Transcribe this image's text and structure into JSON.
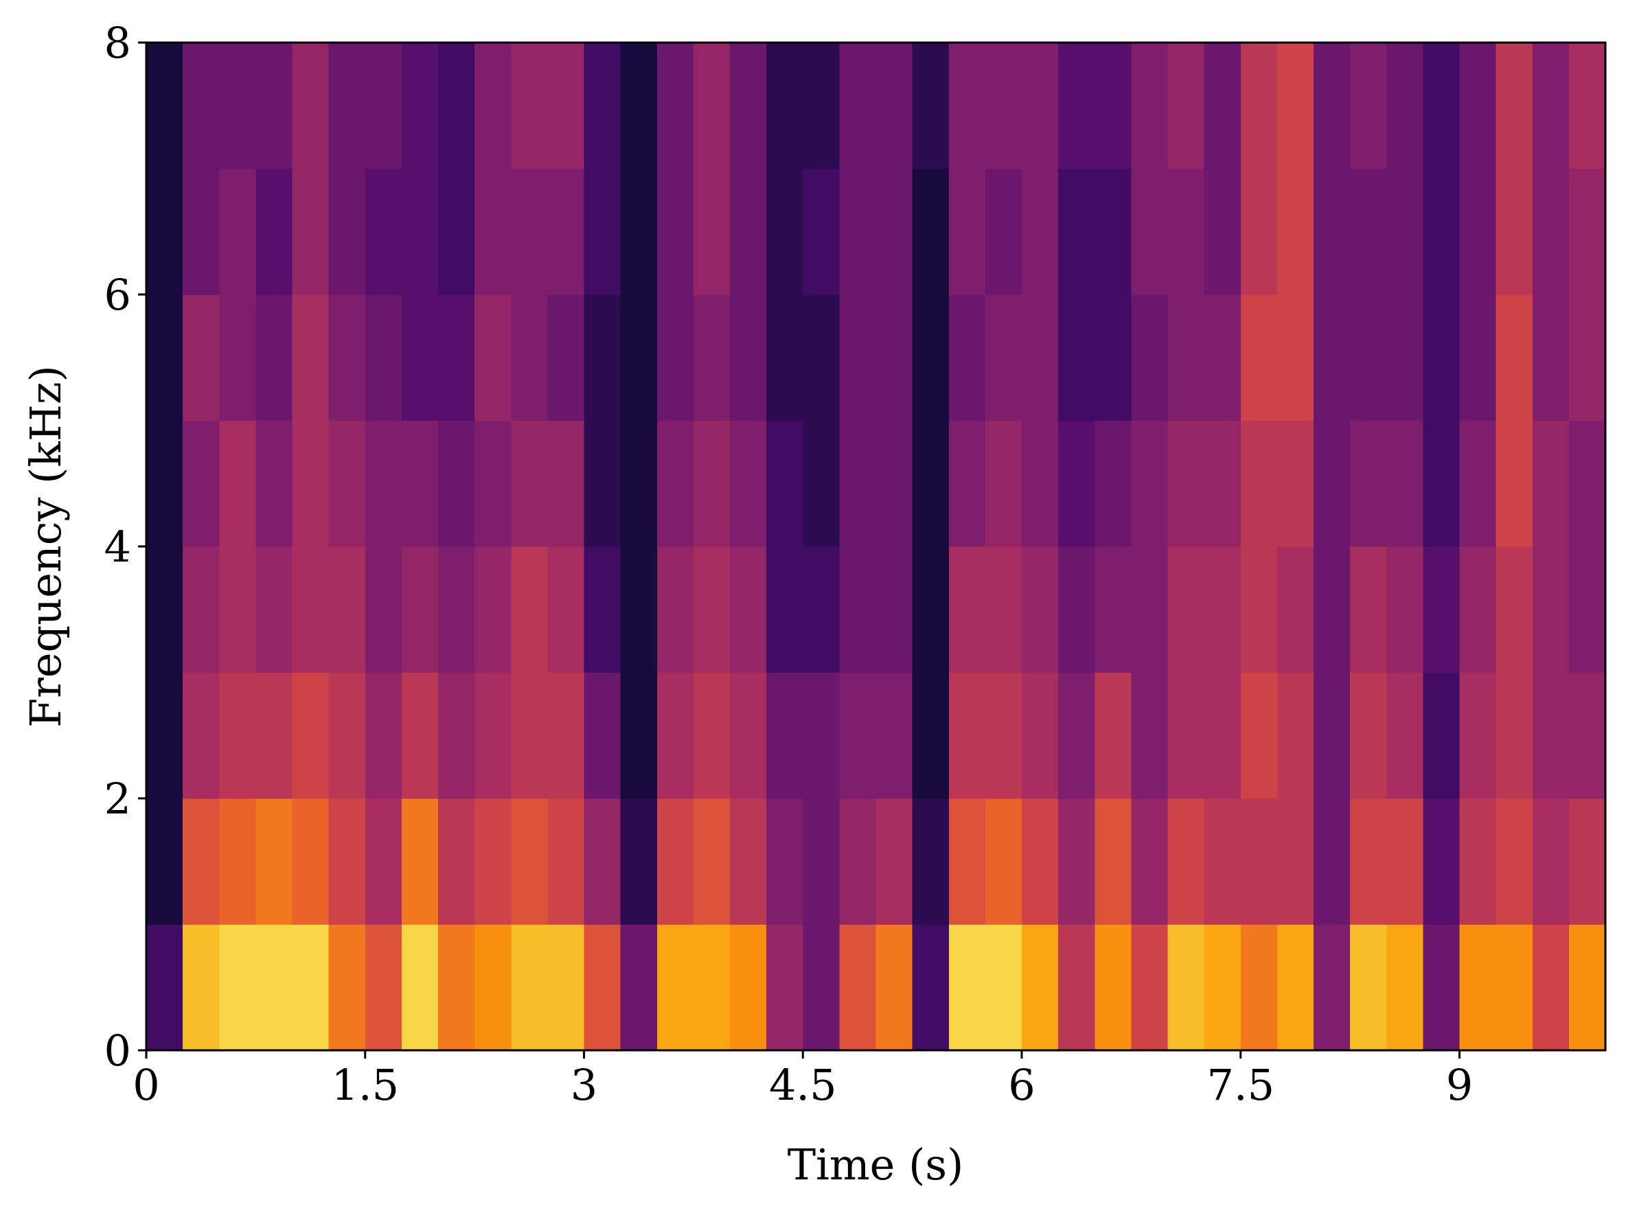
{
  "chart_data": {
    "type": "spectrogram",
    "xlabel": "Time (s)",
    "ylabel": "Frequency (kHz)",
    "xlim": [
      0,
      10
    ],
    "xticks": [
      0,
      {
        "value": 1.5,
        "label": "1.5"
      },
      3,
      {
        "value": 4.5,
        "label": "4.5"
      },
      6,
      {
        "value": 7.5,
        "label": "7.5"
      },
      9
    ],
    "ylim": [
      0,
      8
    ],
    "yticks": [
      0,
      2,
      4,
      6,
      8
    ],
    "time_bins": [
      0,
      0.25,
      0.5,
      0.75,
      1,
      1.25,
      1.5,
      1.75,
      2,
      2.25,
      2.5,
      2.75,
      3,
      3.25,
      3.5,
      3.75,
      4,
      4.25,
      4.5,
      4.75,
      5,
      5.25,
      5.5,
      5.75,
      6,
      6.25,
      6.5,
      6.75,
      7,
      7.25,
      7.5,
      7.75,
      8,
      8.25,
      8.5,
      8.75,
      9,
      9.25,
      9.5,
      9.75,
      10
    ],
    "freq_bins": [
      0,
      1,
      2,
      3,
      4,
      5,
      6,
      7,
      8
    ],
    "zlim": [
      0,
      1
    ],
    "colors": [
      "#000004",
      "#1b0c41",
      "#4a0c6b",
      "#781c6d",
      "#a52c60",
      "#cf4446",
      "#ed6925",
      "#fb9b06",
      "#f7d13d",
      "#fcffa4"
    ],
    "values": [
      [
        0.2,
        0.1,
        0.1,
        0.1,
        0.1,
        0.1,
        0.1,
        0.1
      ],
      [
        0.85,
        0.6,
        0.45,
        0.4,
        0.35,
        0.4,
        0.3,
        0.3
      ],
      [
        0.9,
        0.65,
        0.5,
        0.45,
        0.45,
        0.35,
        0.35,
        0.3
      ],
      [
        0.9,
        0.7,
        0.5,
        0.4,
        0.35,
        0.3,
        0.25,
        0.3
      ],
      [
        0.9,
        0.65,
        0.55,
        0.45,
        0.45,
        0.45,
        0.4,
        0.4
      ],
      [
        0.7,
        0.55,
        0.5,
        0.45,
        0.4,
        0.35,
        0.3,
        0.3
      ],
      [
        0.6,
        0.45,
        0.4,
        0.35,
        0.35,
        0.3,
        0.25,
        0.3
      ],
      [
        0.9,
        0.7,
        0.5,
        0.4,
        0.35,
        0.25,
        0.25,
        0.25
      ],
      [
        0.7,
        0.5,
        0.4,
        0.35,
        0.3,
        0.25,
        0.2,
        0.2
      ],
      [
        0.75,
        0.55,
        0.45,
        0.4,
        0.35,
        0.4,
        0.35,
        0.35
      ],
      [
        0.85,
        0.6,
        0.5,
        0.5,
        0.4,
        0.35,
        0.35,
        0.4
      ],
      [
        0.85,
        0.55,
        0.5,
        0.45,
        0.4,
        0.3,
        0.35,
        0.4
      ],
      [
        0.6,
        0.4,
        0.3,
        0.2,
        0.15,
        0.15,
        0.2,
        0.2
      ],
      [
        0.3,
        0.15,
        0.1,
        0.1,
        0.1,
        0.1,
        0.1,
        0.1
      ],
      [
        0.8,
        0.55,
        0.45,
        0.4,
        0.35,
        0.3,
        0.3,
        0.3
      ],
      [
        0.8,
        0.6,
        0.5,
        0.45,
        0.4,
        0.35,
        0.4,
        0.4
      ],
      [
        0.75,
        0.5,
        0.45,
        0.4,
        0.35,
        0.3,
        0.3,
        0.3
      ],
      [
        0.4,
        0.35,
        0.3,
        0.2,
        0.2,
        0.15,
        0.15,
        0.15
      ],
      [
        0.3,
        0.3,
        0.3,
        0.2,
        0.15,
        0.15,
        0.2,
        0.15
      ],
      [
        0.6,
        0.4,
        0.35,
        0.3,
        0.3,
        0.3,
        0.3,
        0.3
      ],
      [
        0.7,
        0.45,
        0.35,
        0.3,
        0.3,
        0.3,
        0.3,
        0.3
      ],
      [
        0.2,
        0.15,
        0.1,
        0.1,
        0.1,
        0.1,
        0.1,
        0.15
      ],
      [
        0.9,
        0.6,
        0.5,
        0.45,
        0.35,
        0.3,
        0.35,
        0.35
      ],
      [
        0.9,
        0.65,
        0.5,
        0.45,
        0.4,
        0.35,
        0.3,
        0.35
      ],
      [
        0.8,
        0.55,
        0.45,
        0.4,
        0.35,
        0.35,
        0.35,
        0.35
      ],
      [
        0.5,
        0.4,
        0.35,
        0.3,
        0.25,
        0.2,
        0.2,
        0.25
      ],
      [
        0.75,
        0.6,
        0.5,
        0.35,
        0.3,
        0.2,
        0.2,
        0.25
      ],
      [
        0.55,
        0.4,
        0.35,
        0.35,
        0.35,
        0.3,
        0.35,
        0.35
      ],
      [
        0.85,
        0.55,
        0.45,
        0.45,
        0.4,
        0.35,
        0.35,
        0.4
      ],
      [
        0.8,
        0.5,
        0.45,
        0.45,
        0.4,
        0.35,
        0.3,
        0.3
      ],
      [
        0.7,
        0.5,
        0.55,
        0.5,
        0.5,
        0.55,
        0.5,
        0.5
      ],
      [
        0.8,
        0.5,
        0.5,
        0.45,
        0.5,
        0.55,
        0.55,
        0.55
      ],
      [
        0.35,
        0.3,
        0.3,
        0.3,
        0.3,
        0.3,
        0.3,
        0.3
      ],
      [
        0.85,
        0.55,
        0.5,
        0.45,
        0.35,
        0.3,
        0.3,
        0.35
      ],
      [
        0.8,
        0.55,
        0.45,
        0.4,
        0.35,
        0.3,
        0.3,
        0.3
      ],
      [
        0.3,
        0.25,
        0.2,
        0.25,
        0.2,
        0.2,
        0.2,
        0.2
      ],
      [
        0.75,
        0.5,
        0.45,
        0.4,
        0.35,
        0.3,
        0.3,
        0.3
      ],
      [
        0.75,
        0.55,
        0.5,
        0.5,
        0.55,
        0.55,
        0.5,
        0.5
      ],
      [
        0.55,
        0.45,
        0.4,
        0.4,
        0.4,
        0.35,
        0.35,
        0.35
      ],
      [
        0.75,
        0.5,
        0.4,
        0.35,
        0.35,
        0.4,
        0.4,
        0.45
      ]
    ]
  }
}
